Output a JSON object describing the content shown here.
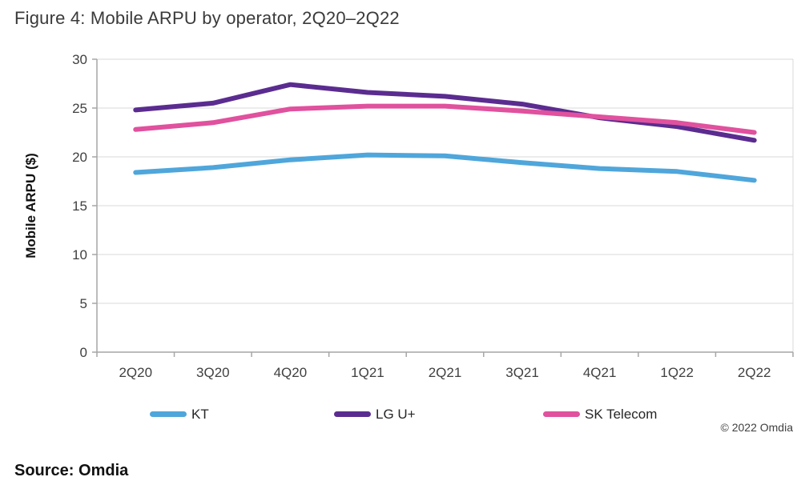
{
  "figure": {
    "title": "Figure 4: Mobile ARPU by operator, 2Q20–2Q22",
    "source_label": "Source: Omdia",
    "copyright": "© 2022 Omdia"
  },
  "chart_data": {
    "type": "line",
    "title": "Figure 4: Mobile ARPU by operator, 2Q20–2Q22",
    "xlabel": "",
    "ylabel": "Mobile ARPU ($)",
    "ylim": [
      0,
      30
    ],
    "y_ticks": [
      0,
      5,
      10,
      15,
      20,
      25,
      30
    ],
    "grid": "horizontal",
    "legend_position": "bottom",
    "categories": [
      "2Q20",
      "3Q20",
      "4Q20",
      "1Q21",
      "2Q21",
      "3Q21",
      "4Q21",
      "1Q22",
      "2Q22"
    ],
    "series": [
      {
        "name": "KT",
        "color": "#4FA6DB",
        "values": [
          18.4,
          18.9,
          19.7,
          20.2,
          20.1,
          19.4,
          18.8,
          18.5,
          17.6
        ]
      },
      {
        "name": "LG U+",
        "color": "#5B2C90",
        "values": [
          24.8,
          25.5,
          27.4,
          26.6,
          26.2,
          25.4,
          24.0,
          23.1,
          21.7
        ]
      },
      {
        "name": "SK Telecom",
        "color": "#E0519E",
        "values": [
          22.8,
          23.5,
          24.9,
          25.2,
          25.2,
          24.7,
          24.1,
          23.5,
          22.5
        ]
      }
    ],
    "colors": {
      "gridline": "#d9d9d9",
      "axis": "#a6a6a6",
      "tick_label": "#404040"
    }
  },
  "legend": {
    "items": [
      {
        "label": "KT"
      },
      {
        "label": "LG U+"
      },
      {
        "label": "SK Telecom"
      }
    ]
  }
}
